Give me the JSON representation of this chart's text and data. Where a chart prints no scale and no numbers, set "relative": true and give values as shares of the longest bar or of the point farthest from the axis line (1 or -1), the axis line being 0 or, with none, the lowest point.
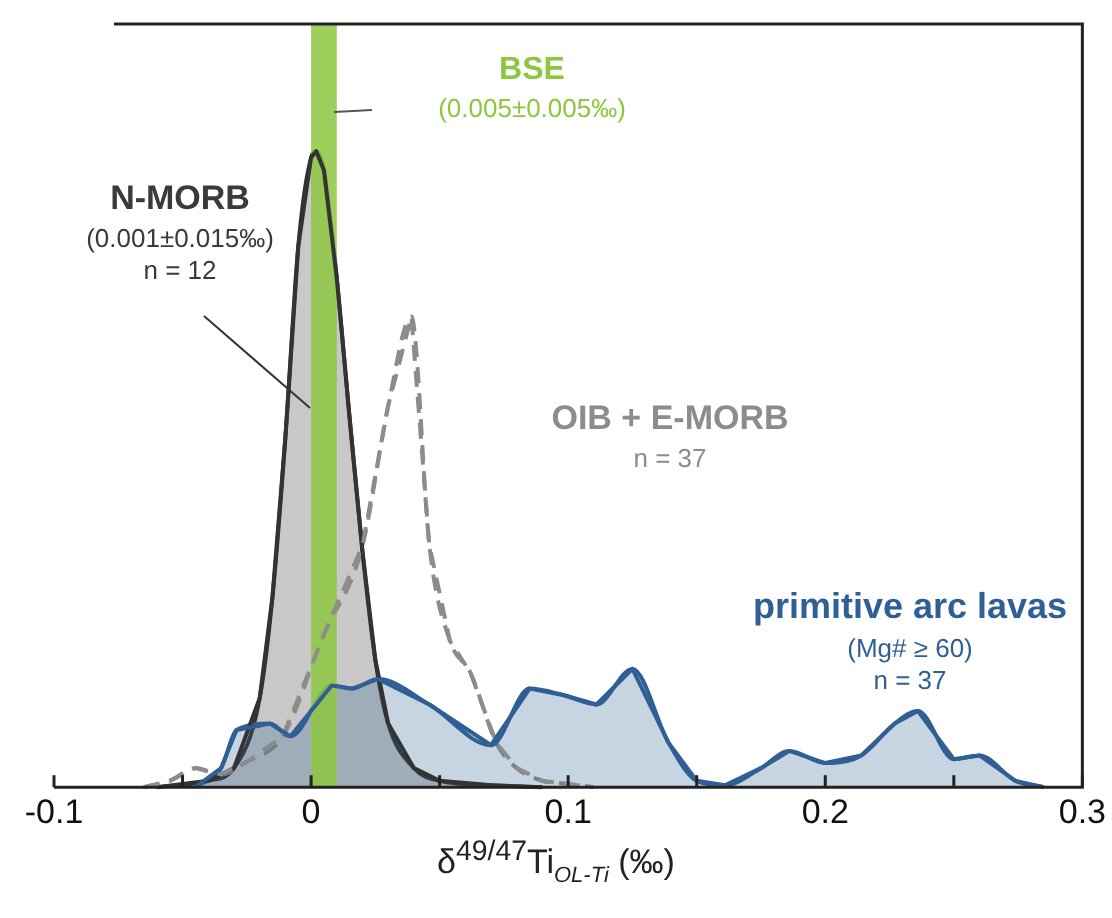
{
  "chart_data": {
    "type": "area",
    "relative": true,
    "xlabel": "δ$^{49/47}$Ti$_{OL-Ti}$ (‰)",
    "xlim": [
      -0.1,
      0.3
    ],
    "xticks": [
      -0.1,
      {
        "value": -0.05,
        "label": null
      },
      0,
      {
        "value": 0.05,
        "label": null
      },
      0.1,
      {
        "value": 0.15,
        "label": null
      },
      0.2,
      {
        "value": 0.25,
        "label": null
      },
      0.3
    ],
    "tick_labels": "x",
    "grid": false,
    "legend": false,
    "marker": "none",
    "bands": [
      {
        "axis": "x",
        "from": 0,
        "to": 0.01,
        "label": "BSE",
        "color": "#8dc63f"
      }
    ],
    "annotations": [
      "(0.005±0.005‰)",
      "(0.001±0.015‰)",
      "n = 12",
      "n = 37",
      "(Mg# ≥ 60)",
      "n = 37"
    ],
    "series": [
      {
        "name": "N-MORB",
        "type": "area",
        "color": "#333333",
        "x": [
          -0.06,
          -0.04,
          -0.03,
          -0.02,
          -0.015,
          -0.01,
          -0.005,
          0,
          0.002,
          0.005,
          0.01,
          0.015,
          0.02,
          0.025,
          0.03,
          0.04,
          0.05,
          0.07,
          0.09
        ],
        "values": [
          0,
          0.01,
          0.03,
          0.14,
          0.3,
          0.55,
          0.85,
          0.99,
          1,
          0.97,
          0.8,
          0.58,
          0.37,
          0.2,
          0.1,
          0.03,
          0.01,
          0.003,
          0
        ]
      },
      {
        "name": "OIB + E-MORB",
        "type": "line",
        "line_style": "dashed",
        "color": "#8c8c8c",
        "x": [
          -0.065,
          -0.055,
          -0.045,
          -0.035,
          -0.025,
          -0.011,
          0.005,
          0.02,
          0.03,
          0.039,
          0.046,
          0.054,
          0.062,
          0.072,
          0.08,
          0.09,
          0.1,
          0.11
        ],
        "values": [
          0,
          0.01,
          0.03,
          0.02,
          0.04,
          0.08,
          0.24,
          0.38,
          0.6,
          0.74,
          0.38,
          0.23,
          0.18,
          0.07,
          0.03,
          0.01,
          0.005,
          0
        ]
      },
      {
        "name": "primitive arc lavas",
        "type": "area",
        "color": "#2f5f95",
        "x": [
          -0.045,
          -0.035,
          -0.029,
          -0.016,
          -0.008,
          0.008,
          0.016,
          0.026,
          0.046,
          0.07,
          0.085,
          0.098,
          0.111,
          0.125,
          0.139,
          0.15,
          0.161,
          0.175,
          0.186,
          0.2,
          0.214,
          0.227,
          0.236,
          0.25,
          0.26,
          0.274,
          0.285
        ],
        "values": [
          0,
          0.03,
          0.09,
          0.1,
          0.08,
          0.16,
          0.155,
          0.17,
          0.13,
          0.066,
          0.155,
          0.145,
          0.13,
          0.186,
          0.07,
          0.01,
          0.003,
          0.03,
          0.057,
          0.038,
          0.05,
          0.1,
          0.12,
          0.044,
          0.05,
          0.01,
          0
        ]
      }
    ]
  }
}
